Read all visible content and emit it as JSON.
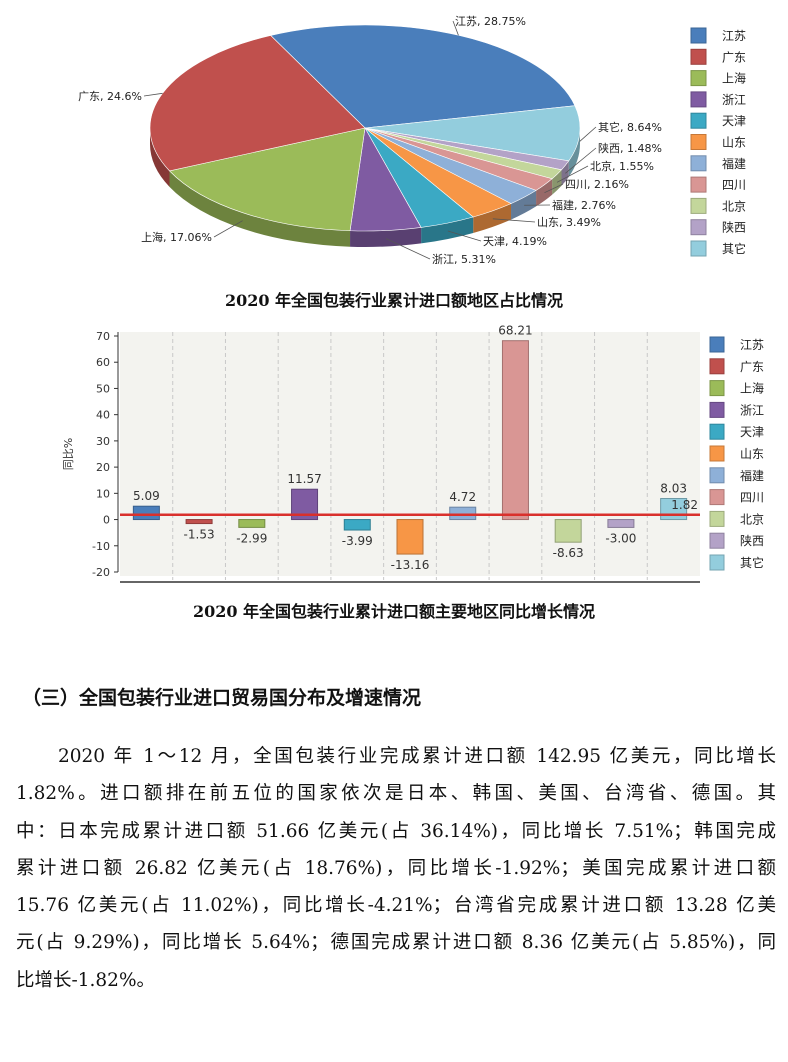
{
  "chart_data": [
    {
      "type": "pie",
      "title": "2020 年全国包装行业累计进口额地区占比情况",
      "categories": [
        "江苏",
        "广东",
        "上海",
        "浙江",
        "天津",
        "山东",
        "福建",
        "四川",
        "北京",
        "陕西",
        "其它"
      ],
      "values": [
        28.75,
        24.6,
        17.06,
        5.31,
        4.19,
        3.49,
        2.76,
        2.16,
        1.55,
        1.48,
        8.64
      ],
      "labels": [
        "江苏, 28.75%",
        "广东, 24.6%",
        "上海, 17.06%",
        "浙江, 5.31%",
        "天津, 4.19%",
        "山东, 3.49%",
        "福建, 2.76%",
        "四川, 2.16%",
        "北京, 1.55%",
        "陕西, 1.48%",
        "其它, 8.64%"
      ],
      "colors": [
        "#4a7ebb",
        "#c0504d",
        "#9bbb59",
        "#7f5ba2",
        "#3ba9c4",
        "#f79646",
        "#8eb0d8",
        "#d99694",
        "#c3d69b",
        "#b3a2c7",
        "#93cddd"
      ],
      "legend": "right"
    },
    {
      "type": "bar",
      "title": "2020 年全国包装行业累计进口额主要地区同比增长情况",
      "categories": [
        "江苏",
        "广东",
        "上海",
        "浙江",
        "天津",
        "山东",
        "福建",
        "四川",
        "北京",
        "陕西",
        "其它"
      ],
      "values": [
        5.09,
        -1.53,
        -2.99,
        11.57,
        -3.99,
        -13.16,
        4.72,
        68.21,
        -8.63,
        -3.0,
        8.03
      ],
      "value_labels": [
        "5.09",
        "-1.53",
        "-2.99",
        "11.57",
        "-3.99",
        "-13.16",
        "4.72",
        "68.21",
        "-8.63",
        "-3.00",
        "8.03"
      ],
      "reference_line": {
        "value": 1.82,
        "label": "1.82",
        "color": "#d9302c"
      },
      "ylabel": "同比%",
      "ylim": [
        -20,
        70
      ],
      "yticks": [
        "70",
        "60",
        "50",
        "40",
        "30",
        "20",
        "10",
        "0",
        "-10",
        "-20"
      ],
      "colors": [
        "#4a7ebb",
        "#c0504d",
        "#9bbb59",
        "#7f5ba2",
        "#3ba9c4",
        "#f79646",
        "#8eb0d8",
        "#d99694",
        "#c3d69b",
        "#b3a2c7",
        "#93cddd"
      ],
      "grid": true,
      "legend": "right"
    }
  ],
  "section": {
    "heading": "（三）全国包装行业进口贸易国分布及增速情况",
    "lines": [
      "2020 年 1～12 月，全国包装行业完成累计进口额 142.95 亿美元，同比增长",
      "1.82%。进口额排在前五位的国家依次是日本、韩国、美国、台湾省、德国。其",
      "中：日本完成累计进口额 51.66 亿美元(占 36.14%)，同比增长 7.51%；韩国完成",
      "累计进口额  26.82  亿美元(占  18.76%)，同比增长-1.92%；美国完成累计进口额",
      "15.76 亿美元(占 11.02%)，同比增长-4.21%；台湾省完成累计进口额 13.28 亿美",
      "元(占 9.29%)，同比增长 5.64%；德国完成累计进口额 8.36 亿美元(占 5.85%)，同",
      "比增长-1.82%。"
    ]
  }
}
